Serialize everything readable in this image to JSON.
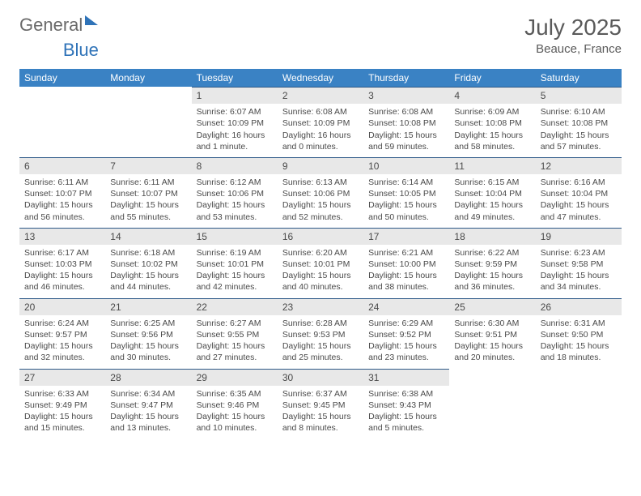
{
  "brand": {
    "part1": "General",
    "part2": "Blue"
  },
  "title": "July 2025",
  "location": "Beauce, France",
  "colors": {
    "header_bg": "#3a82c4",
    "header_text": "#ffffff",
    "daynum_bg": "#e8e8e8",
    "rule": "#2f5a88",
    "text": "#4a4a4a",
    "brand_gray": "#6a6a6a",
    "brand_blue": "#2f73b8"
  },
  "weekdays": [
    "Sunday",
    "Monday",
    "Tuesday",
    "Wednesday",
    "Thursday",
    "Friday",
    "Saturday"
  ],
  "weeks": [
    [
      null,
      null,
      {
        "n": "1",
        "sr": "6:07 AM",
        "ss": "10:09 PM",
        "d": "16 hours and 1 minute."
      },
      {
        "n": "2",
        "sr": "6:08 AM",
        "ss": "10:09 PM",
        "d": "16 hours and 0 minutes."
      },
      {
        "n": "3",
        "sr": "6:08 AM",
        "ss": "10:08 PM",
        "d": "15 hours and 59 minutes."
      },
      {
        "n": "4",
        "sr": "6:09 AM",
        "ss": "10:08 PM",
        "d": "15 hours and 58 minutes."
      },
      {
        "n": "5",
        "sr": "6:10 AM",
        "ss": "10:08 PM",
        "d": "15 hours and 57 minutes."
      }
    ],
    [
      {
        "n": "6",
        "sr": "6:11 AM",
        "ss": "10:07 PM",
        "d": "15 hours and 56 minutes."
      },
      {
        "n": "7",
        "sr": "6:11 AM",
        "ss": "10:07 PM",
        "d": "15 hours and 55 minutes."
      },
      {
        "n": "8",
        "sr": "6:12 AM",
        "ss": "10:06 PM",
        "d": "15 hours and 53 minutes."
      },
      {
        "n": "9",
        "sr": "6:13 AM",
        "ss": "10:06 PM",
        "d": "15 hours and 52 minutes."
      },
      {
        "n": "10",
        "sr": "6:14 AM",
        "ss": "10:05 PM",
        "d": "15 hours and 50 minutes."
      },
      {
        "n": "11",
        "sr": "6:15 AM",
        "ss": "10:04 PM",
        "d": "15 hours and 49 minutes."
      },
      {
        "n": "12",
        "sr": "6:16 AM",
        "ss": "10:04 PM",
        "d": "15 hours and 47 minutes."
      }
    ],
    [
      {
        "n": "13",
        "sr": "6:17 AM",
        "ss": "10:03 PM",
        "d": "15 hours and 46 minutes."
      },
      {
        "n": "14",
        "sr": "6:18 AM",
        "ss": "10:02 PM",
        "d": "15 hours and 44 minutes."
      },
      {
        "n": "15",
        "sr": "6:19 AM",
        "ss": "10:01 PM",
        "d": "15 hours and 42 minutes."
      },
      {
        "n": "16",
        "sr": "6:20 AM",
        "ss": "10:01 PM",
        "d": "15 hours and 40 minutes."
      },
      {
        "n": "17",
        "sr": "6:21 AM",
        "ss": "10:00 PM",
        "d": "15 hours and 38 minutes."
      },
      {
        "n": "18",
        "sr": "6:22 AM",
        "ss": "9:59 PM",
        "d": "15 hours and 36 minutes."
      },
      {
        "n": "19",
        "sr": "6:23 AM",
        "ss": "9:58 PM",
        "d": "15 hours and 34 minutes."
      }
    ],
    [
      {
        "n": "20",
        "sr": "6:24 AM",
        "ss": "9:57 PM",
        "d": "15 hours and 32 minutes."
      },
      {
        "n": "21",
        "sr": "6:25 AM",
        "ss": "9:56 PM",
        "d": "15 hours and 30 minutes."
      },
      {
        "n": "22",
        "sr": "6:27 AM",
        "ss": "9:55 PM",
        "d": "15 hours and 27 minutes."
      },
      {
        "n": "23",
        "sr": "6:28 AM",
        "ss": "9:53 PM",
        "d": "15 hours and 25 minutes."
      },
      {
        "n": "24",
        "sr": "6:29 AM",
        "ss": "9:52 PM",
        "d": "15 hours and 23 minutes."
      },
      {
        "n": "25",
        "sr": "6:30 AM",
        "ss": "9:51 PM",
        "d": "15 hours and 20 minutes."
      },
      {
        "n": "26",
        "sr": "6:31 AM",
        "ss": "9:50 PM",
        "d": "15 hours and 18 minutes."
      }
    ],
    [
      {
        "n": "27",
        "sr": "6:33 AM",
        "ss": "9:49 PM",
        "d": "15 hours and 15 minutes."
      },
      {
        "n": "28",
        "sr": "6:34 AM",
        "ss": "9:47 PM",
        "d": "15 hours and 13 minutes."
      },
      {
        "n": "29",
        "sr": "6:35 AM",
        "ss": "9:46 PM",
        "d": "15 hours and 10 minutes."
      },
      {
        "n": "30",
        "sr": "6:37 AM",
        "ss": "9:45 PM",
        "d": "15 hours and 8 minutes."
      },
      {
        "n": "31",
        "sr": "6:38 AM",
        "ss": "9:43 PM",
        "d": "15 hours and 5 minutes."
      },
      null,
      null
    ]
  ],
  "labels": {
    "sunrise": "Sunrise: ",
    "sunset": "Sunset: ",
    "daylight": "Daylight: "
  }
}
